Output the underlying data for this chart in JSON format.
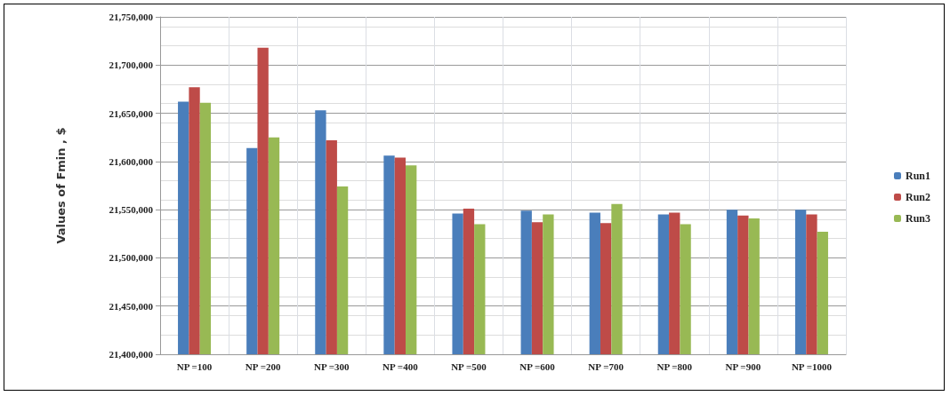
{
  "chart_data": {
    "type": "bar",
    "ylabel": "Values of Fmin , $",
    "categories": [
      "NP =100",
      "NP =200",
      "NP =300",
      "NP =400",
      "NP =500",
      "NP =600",
      "NP =700",
      "NP =800",
      "NP =900",
      "NP =1000"
    ],
    "series": [
      {
        "name": "Run1",
        "color": "#4a7ebb",
        "values": [
          21662000,
          21614000,
          21653000,
          21606000,
          21546000,
          21549000,
          21547000,
          21545000,
          21550000,
          21550000
        ]
      },
      {
        "name": "Run2",
        "color": "#be4b48",
        "values": [
          21677000,
          21718000,
          21622000,
          21604000,
          21551000,
          21537000,
          21536000,
          21547000,
          21544000,
          21545000
        ]
      },
      {
        "name": "Run3",
        "color": "#98b954",
        "values": [
          21661000,
          21625000,
          21574000,
          21596000,
          21535000,
          21545000,
          21556000,
          21535000,
          21541000,
          21527000
        ]
      }
    ],
    "ylim": [
      21400000,
      21750000
    ],
    "yticks": [
      {
        "value": 21400000,
        "label": "21,400,000"
      },
      {
        "value": 21450000,
        "label": "21,450,000"
      },
      {
        "value": 21500000,
        "label": "21,500,000"
      },
      {
        "value": 21550000,
        "label": "21,550,000"
      },
      {
        "value": 21600000,
        "label": "21,600,000"
      },
      {
        "value": 21650000,
        "label": "21,650,000"
      },
      {
        "value": 21700000,
        "label": "21,700,000"
      },
      {
        "value": 21750000,
        "label": "21,750,000"
      }
    ],
    "grid": true,
    "legend": "right"
  }
}
